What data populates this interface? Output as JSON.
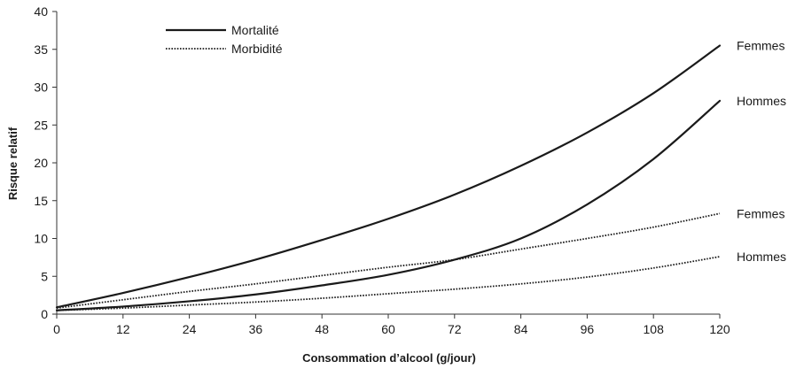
{
  "chart_data": {
    "type": "line",
    "xlabel": "Consommation d’alcool (g/jour)",
    "ylabel": "Risque relatif",
    "xlim": [
      0,
      120
    ],
    "ylim": [
      0,
      40
    ],
    "x_ticks": [
      0,
      12,
      24,
      36,
      48,
      60,
      72,
      84,
      96,
      108,
      120
    ],
    "y_ticks": [
      0,
      5,
      10,
      15,
      20,
      25,
      30,
      35,
      40
    ],
    "grid": false,
    "legend_position": "top-left",
    "legend": [
      {
        "label": "Mortalité",
        "style": "solid"
      },
      {
        "label": "Morbidité",
        "style": "dotted"
      }
    ],
    "x": [
      0,
      12,
      24,
      36,
      48,
      60,
      72,
      84,
      96,
      108,
      120
    ],
    "series": [
      {
        "name": "Femmes",
        "group": "Mortalité",
        "style": "solid",
        "values": [
          0.9,
          2.8,
          4.9,
          7.2,
          9.8,
          12.6,
          15.8,
          19.6,
          24.0,
          29.2,
          35.5
        ]
      },
      {
        "name": "Hommes",
        "group": "Mortalité",
        "style": "solid",
        "values": [
          0.5,
          1.0,
          1.7,
          2.6,
          3.8,
          5.2,
          7.2,
          10.0,
          14.5,
          20.5,
          28.2
        ]
      },
      {
        "name": "Femmes",
        "group": "Morbidité",
        "style": "dotted",
        "values": [
          0.8,
          1.9,
          3.0,
          4.0,
          5.1,
          6.2,
          7.2,
          8.6,
          10.0,
          11.5,
          13.3
        ]
      },
      {
        "name": "Hommes",
        "group": "Morbidité",
        "style": "dotted",
        "values": [
          0.5,
          0.8,
          1.2,
          1.6,
          2.1,
          2.7,
          3.3,
          4.0,
          4.9,
          6.1,
          7.6
        ]
      }
    ]
  },
  "colors": {
    "line": "#1a1a1a",
    "axis": "#333333"
  }
}
